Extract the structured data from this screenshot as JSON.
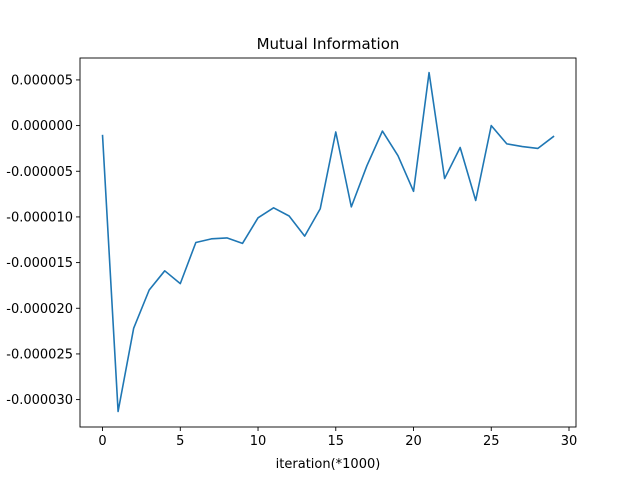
{
  "chart_data": {
    "type": "line",
    "title": "Mutual Information",
    "xlabel": "iteration(*1000)",
    "ylabel": "",
    "xlim": [
      -1.45,
      30.45
    ],
    "ylim": [
      -3.3e-05,
      7.4e-06
    ],
    "xticks": [
      0,
      5,
      10,
      15,
      20,
      25,
      30
    ],
    "xtick_labels": [
      "0",
      "5",
      "10",
      "15",
      "20",
      "25",
      "30"
    ],
    "yticks": [
      5e-06,
      0.0,
      -5e-06,
      -1e-05,
      -1.5e-05,
      -2e-05,
      -2.5e-05,
      -3e-05
    ],
    "ytick_labels": [
      "0.000005",
      "0.000000",
      "-0.000005",
      "-0.000010",
      "-0.000015",
      "-0.000020",
      "-0.000025",
      "-0.000030"
    ],
    "grid": false,
    "series": [
      {
        "color": "#1f77b4",
        "x": [
          0,
          1,
          2,
          3,
          4,
          5,
          6,
          7,
          8,
          9,
          10,
          11,
          12,
          13,
          14,
          15,
          16,
          17,
          18,
          19,
          20,
          21,
          22,
          23,
          24,
          25,
          26,
          27,
          28,
          29
        ],
        "y": [
          -1.1e-06,
          -3.13e-05,
          -2.22e-05,
          -1.8e-05,
          -1.59e-05,
          -1.73e-05,
          -1.28e-05,
          -1.24e-05,
          -1.23e-05,
          -1.29e-05,
          -1.01e-05,
          -9e-06,
          -9.9e-06,
          -1.21e-05,
          -9.1e-06,
          -7e-07,
          -8.9e-06,
          -4.4e-06,
          -6e-07,
          -3.3e-06,
          -7.2e-06,
          5.8e-06,
          -5.8e-06,
          -2.4e-06,
          -8.2e-06,
          0.0,
          -2e-06,
          -2.3e-06,
          -2.5e-06,
          -1.2e-06
        ]
      }
    ]
  }
}
